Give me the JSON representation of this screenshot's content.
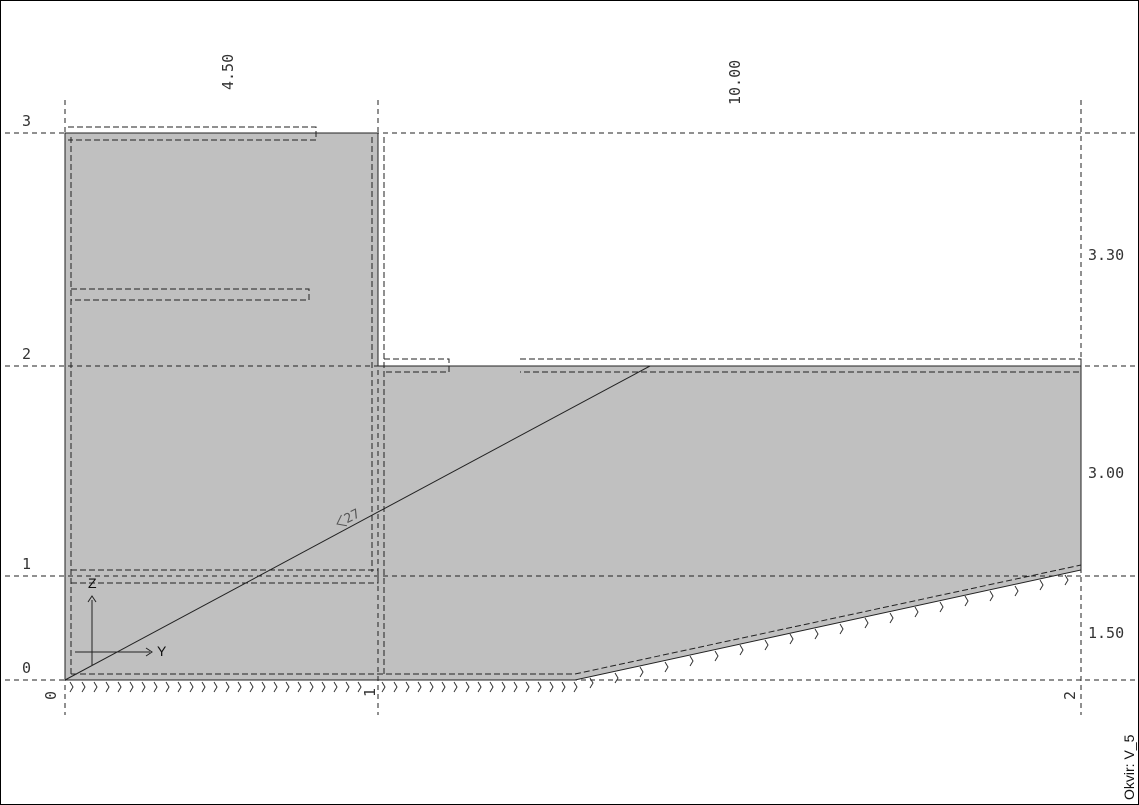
{
  "diagram": {
    "frame_label": "Okvir: V_5",
    "dimensions_top": [
      "4.50",
      "10.00"
    ],
    "dimensions_right": [
      "3.30",
      "3.00",
      "1.50"
    ],
    "level_labels": [
      "3",
      "2",
      "1",
      "0"
    ],
    "node_labels": [
      "0",
      "1",
      "2"
    ],
    "angle_label": "27",
    "axis_labels": {
      "horizontal": "Y",
      "vertical": "Z"
    },
    "colors": {
      "section_fill": "#c0c0c0",
      "line": "#222222",
      "background": "#ffffff"
    }
  }
}
